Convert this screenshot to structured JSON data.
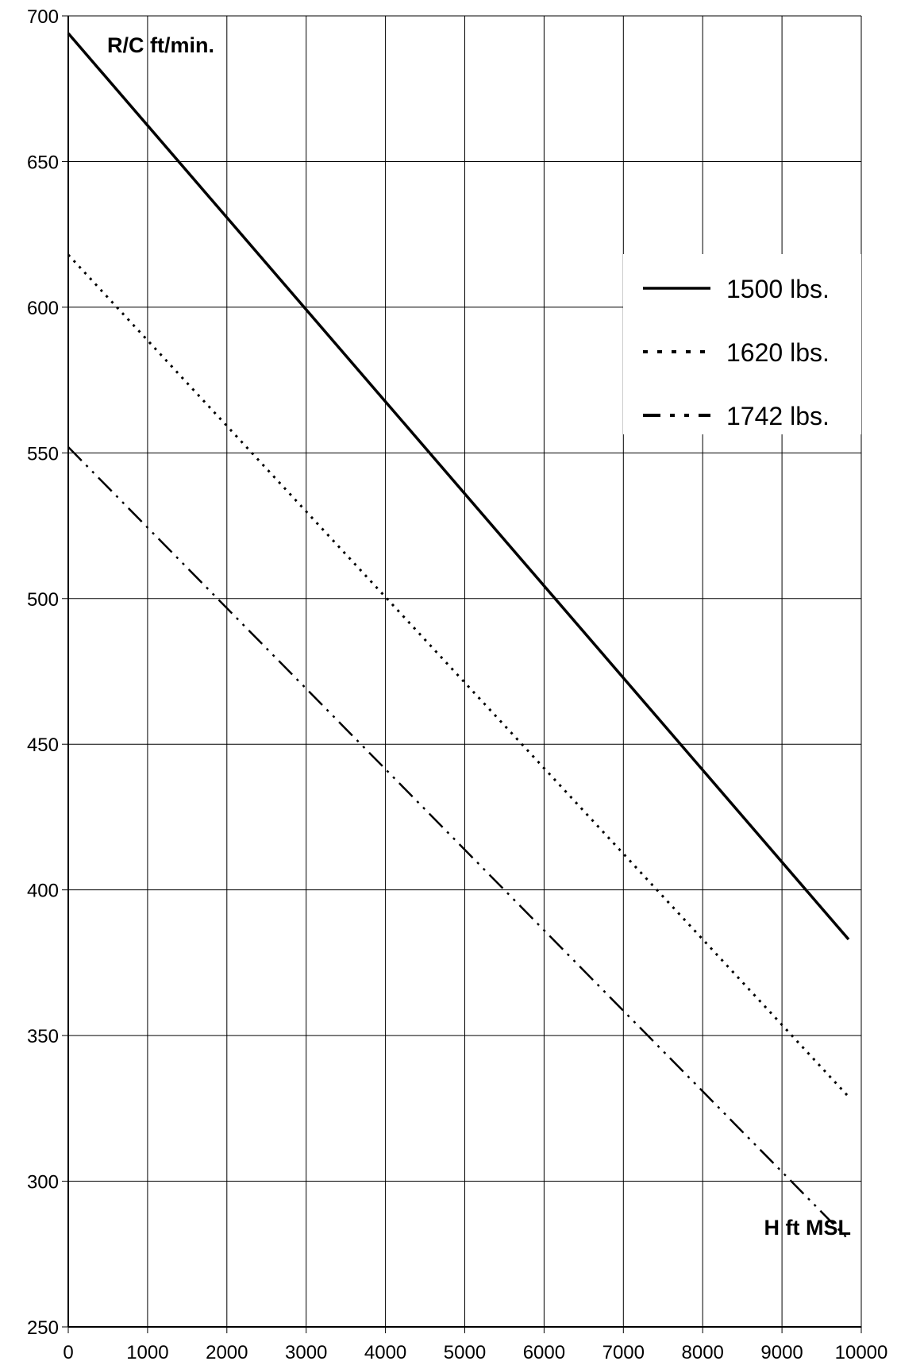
{
  "chart_data": {
    "type": "line",
    "title": "",
    "ylabel": "R/C ft/min.",
    "xlabel": "H ft MSL",
    "xlim": [
      0,
      10000
    ],
    "ylim": [
      250,
      700
    ],
    "x_ticks": [
      0,
      1000,
      2000,
      3000,
      4000,
      5000,
      6000,
      7000,
      8000,
      9000,
      10000
    ],
    "y_ticks": [
      250,
      300,
      350,
      400,
      450,
      500,
      550,
      600,
      650,
      700
    ],
    "grid": true,
    "legend_position": "top-right",
    "series": [
      {
        "name": "1500 lbs.",
        "style": "solid",
        "x": [
          0,
          9840
        ],
        "y": [
          694,
          383
        ]
      },
      {
        "name": "1620 lbs.",
        "style": "dotted",
        "x": [
          0,
          9840
        ],
        "y": [
          618,
          329
        ]
      },
      {
        "name": "1742 lbs.",
        "style": "dash-dot",
        "x": [
          0,
          9840
        ],
        "y": [
          552,
          280
        ]
      }
    ]
  }
}
